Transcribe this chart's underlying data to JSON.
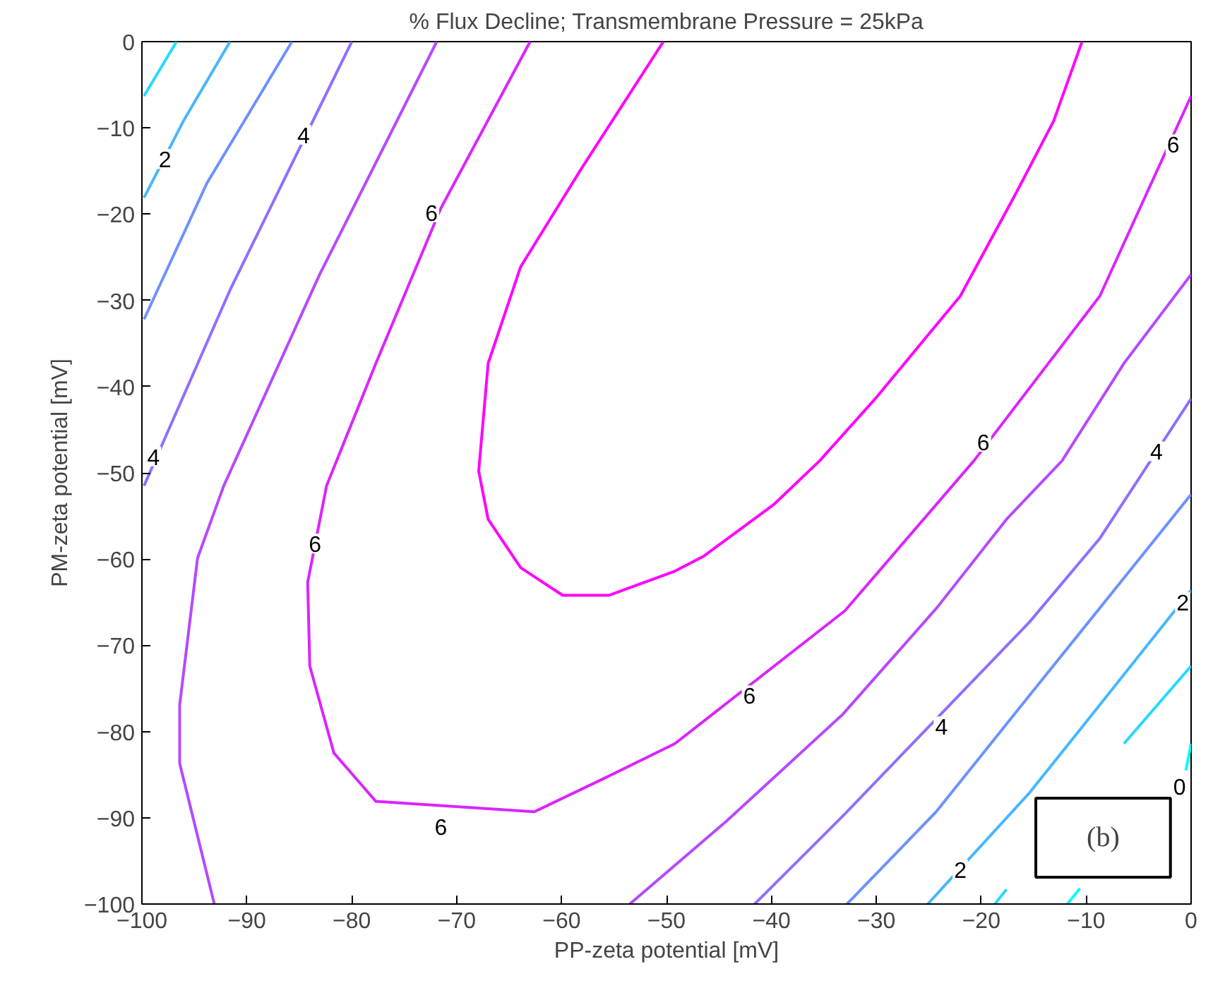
{
  "chart_data": {
    "type": "line",
    "title": "% Flux Decline; Transmembrane Pressure = 25kPa",
    "xlabel": "PP-zeta potential [mV]",
    "ylabel": "PM-zeta potential [mV]",
    "xlim": [
      -100,
      0
    ],
    "ylim": [
      -100,
      0
    ],
    "xticks": [
      -100,
      -90,
      -80,
      -70,
      -60,
      -50,
      -40,
      -30,
      -20,
      -10,
      0
    ],
    "yticks": [
      -100,
      -90,
      -80,
      -70,
      -60,
      -50,
      -40,
      -30,
      -20,
      -10,
      0
    ],
    "grid": false,
    "marker": "none",
    "line_style": "solid",
    "series": [
      {
        "color": "#24dbff",
        "x": [
          -99.8,
          -96.7
        ],
        "values": [
          -6.3,
          0
        ]
      },
      {
        "color": "#49b6ff",
        "x": [
          -99.8,
          -96,
          -91.6
        ],
        "values": [
          -18.1,
          -9.1,
          0
        ]
      },
      {
        "color": "#6d92ff",
        "x": [
          -99.8,
          -93.8,
          -85.7
        ],
        "values": [
          -32.2,
          -16.4,
          0
        ]
      },
      {
        "color": "#926dff",
        "x": [
          -99.8,
          -91.6,
          -80
        ],
        "values": [
          -51.5,
          -28.8,
          0
        ]
      },
      {
        "color": "#b649ff",
        "x": [
          -71.9,
          -83.1,
          -92.2,
          -94.7,
          -96.4,
          -96.4,
          -93.1
        ],
        "values": [
          0,
          -27.1,
          -51.5,
          -59.9,
          -76.9,
          -83.7,
          -100
        ]
      },
      {
        "color": "#db24ff",
        "x": [
          -63,
          -71.5,
          -77.7,
          -82.4,
          -84.2,
          -84,
          -81.7,
          -77.7,
          -62.6,
          -55.9,
          -49.2,
          -33,
          -20.7,
          -8.7,
          0
        ],
        "values": [
          0,
          -19.3,
          -37.3,
          -51.5,
          -62.7,
          -72.4,
          -82.5,
          -88.1,
          -89.3,
          -85.4,
          -81.4,
          -66,
          -48.6,
          -29.5,
          -6.3
        ]
      },
      {
        "color": "#ff00ff",
        "x": [
          -50.3,
          -58.1,
          -63.9,
          -67,
          -67.9,
          -67,
          -63.9,
          -59.9,
          -55.5,
          -49.2,
          -46.5,
          -39.8,
          -35.4,
          -30.1,
          -22,
          -16.7,
          -13.1,
          -10.4
        ],
        "values": [
          0,
          -14.7,
          -26.1,
          -37.3,
          -49.8,
          -55.4,
          -61,
          -64.2,
          -64.2,
          -61.4,
          -59.7,
          -53.7,
          -48.6,
          -41.4,
          -29.5,
          -17.6,
          -9.2,
          0
        ]
      },
      {
        "color": "#b649ff",
        "x": [
          -53.5,
          -44.3,
          -33.2,
          -24.2,
          -17.6,
          -12.3,
          -6.4,
          0
        ],
        "values": [
          -100,
          -90.4,
          -78,
          -65.6,
          -55.4,
          -48.6,
          -37.3,
          -27
        ]
      },
      {
        "color": "#926dff",
        "x": [
          -41.6,
          -33.2,
          -15.4,
          -8.7,
          0
        ],
        "values": [
          -100,
          -89.8,
          -67.3,
          -57.6,
          -41.4
        ]
      },
      {
        "color": "#6d92ff",
        "x": [
          -32.8,
          -24.3,
          -15.4,
          -6.4,
          0
        ],
        "values": [
          -100,
          -89.3,
          -75.8,
          -62.2,
          -52.5
        ]
      },
      {
        "color": "#49b6ff",
        "x": [
          -25.1,
          -15.4,
          -8.7,
          0
        ],
        "values": [
          -100,
          -87.1,
          -76.9,
          -63.6
        ]
      },
      {
        "color": "#24dbff",
        "x": [
          -18.7,
          -17.6,
          -10,
          -6.4,
          0
        ],
        "values": [
          -100,
          -98.3,
          null,
          -81.4,
          -72.4
        ]
      },
      {
        "color": "#00ffff",
        "x": [
          -11.8,
          -10.6,
          -5,
          -0.5,
          0
        ],
        "values": [
          -100,
          -98.2,
          null,
          -84.5,
          -81.4
        ]
      }
    ],
    "annotations": [
      {
        "text": "2",
        "x": -97.8,
        "y": -13.6
      },
      {
        "text": "4",
        "x": -84.6,
        "y": -10.8
      },
      {
        "text": "4",
        "x": -98.9,
        "y": -48.1
      },
      {
        "text": "6",
        "x": -72.4,
        "y": -19.8
      },
      {
        "text": "6",
        "x": -83.5,
        "y": -58.2
      },
      {
        "text": "6",
        "x": -71.5,
        "y": -91
      },
      {
        "text": "6",
        "x": -42.1,
        "y": -75.8
      },
      {
        "text": "6",
        "x": -19.8,
        "y": -46.4
      },
      {
        "text": "6",
        "x": -1.7,
        "y": -11.9
      },
      {
        "text": "4",
        "x": -3.3,
        "y": -47.5
      },
      {
        "text": "2",
        "x": -0.8,
        "y": -65
      },
      {
        "text": "4",
        "x": -23.8,
        "y": -79.4
      },
      {
        "text": "2",
        "x": -22,
        "y": -96
      },
      {
        "text": "0",
        "x": -1.1,
        "y": -86.3
      },
      "(b)"
    ]
  }
}
